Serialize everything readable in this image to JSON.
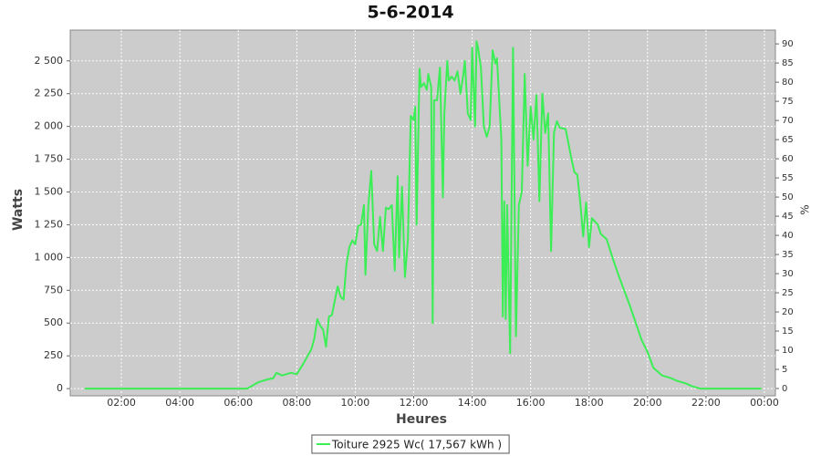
{
  "chart_data": {
    "type": "line",
    "title": "5-6-2014",
    "x_label": "Heures",
    "y_label": "Watts",
    "y2_label": "%",
    "x": [
      0.75,
      6.3,
      6.7,
      7.0,
      7.2,
      7.3,
      7.5,
      7.8,
      8.0,
      8.2,
      8.5,
      8.6,
      8.7,
      8.8,
      8.9,
      9.0,
      9.1,
      9.2,
      9.4,
      9.5,
      9.6,
      9.7,
      9.8,
      9.9,
      10.0,
      10.1,
      10.2,
      10.3,
      10.35,
      10.45,
      10.55,
      10.65,
      10.75,
      10.85,
      10.95,
      11.05,
      11.15,
      11.25,
      11.35,
      11.45,
      11.5,
      11.6,
      11.7,
      11.8,
      11.9,
      12.0,
      12.05,
      12.1,
      12.2,
      12.25,
      12.35,
      12.45,
      12.5,
      12.6,
      12.65,
      12.7,
      12.8,
      12.9,
      13.0,
      13.05,
      13.15,
      13.2,
      13.3,
      13.4,
      13.5,
      13.6,
      13.7,
      13.75,
      13.85,
      13.95,
      14.0,
      14.1,
      14.15,
      14.2,
      14.3,
      14.4,
      14.5,
      14.6,
      14.7,
      14.8,
      14.85,
      15.0,
      15.05,
      15.1,
      15.15,
      15.2,
      15.3,
      15.4,
      15.5,
      15.6,
      15.7,
      15.8,
      15.9,
      16.0,
      16.1,
      16.2,
      16.3,
      16.4,
      16.5,
      16.6,
      16.7,
      16.8,
      16.9,
      17.0,
      17.2,
      17.4,
      17.5,
      17.6,
      17.7,
      17.8,
      17.9,
      18.0,
      18.1,
      18.3,
      18.4,
      18.6,
      18.8,
      19.0,
      19.2,
      19.4,
      19.6,
      19.8,
      20.0,
      20.2,
      20.5,
      20.8,
      21.0,
      21.3,
      21.5,
      21.8,
      23.9
    ],
    "series": [
      {
        "name": "Toiture 2925 Wc( 17,567 kWh )",
        "color": "#3cee55",
        "values": [
          0,
          0,
          50,
          70,
          80,
          120,
          100,
          120,
          110,
          180,
          300,
          380,
          530,
          480,
          450,
          320,
          550,
          560,
          780,
          700,
          680,
          950,
          1080,
          1130,
          1100,
          1240,
          1250,
          1400,
          870,
          1400,
          1660,
          1100,
          1050,
          1310,
          1050,
          1380,
          1370,
          1400,
          900,
          1620,
          1000,
          1540,
          850,
          1130,
          2080,
          2050,
          2150,
          1250,
          2440,
          2300,
          2330,
          2280,
          2400,
          2300,
          500,
          2200,
          2200,
          2450,
          1460,
          2100,
          2500,
          2350,
          2380,
          2350,
          2420,
          2250,
          2400,
          2500,
          2100,
          2050,
          2600,
          2000,
          2650,
          2600,
          2450,
          2000,
          1920,
          2000,
          2580,
          2480,
          2520,
          1900,
          550,
          1430,
          530,
          1400,
          270,
          2600,
          400,
          1400,
          1500,
          2400,
          1700,
          2150,
          1900,
          2240,
          1430,
          2250,
          1950,
          2100,
          1050,
          1950,
          2040,
          1990,
          1980,
          1750,
          1650,
          1630,
          1420,
          1160,
          1420,
          1080,
          1300,
          1250,
          1180,
          1140,
          1000,
          870,
          750,
          630,
          500,
          370,
          280,
          160,
          100,
          80,
          60,
          40,
          20,
          0,
          0
        ]
      }
    ],
    "xlim": [
      0.25,
      24.375
    ],
    "xticks": [
      {
        "value": 2,
        "label": "02:00"
      },
      {
        "value": 4,
        "label": "04:00"
      },
      {
        "value": 6,
        "label": "06:00"
      },
      {
        "value": 8,
        "label": "08:00"
      },
      {
        "value": 10,
        "label": "10:00"
      },
      {
        "value": 12,
        "label": "12:00"
      },
      {
        "value": 14,
        "label": "14:00"
      },
      {
        "value": 16,
        "label": "16:00"
      },
      {
        "value": 18,
        "label": "18:00"
      },
      {
        "value": 20,
        "label": "20:00"
      },
      {
        "value": 22,
        "label": "22:00"
      },
      {
        "value": 24,
        "label": "00:00"
      }
    ],
    "ylim": [
      -55,
      2735
    ],
    "yticks": [
      0,
      250,
      500,
      750,
      {
        "value": 1000,
        "label": "1 000"
      },
      {
        "value": 1250,
        "label": "1 250"
      },
      {
        "value": 1500,
        "label": "1 500"
      },
      {
        "value": 1750,
        "label": "1 750"
      },
      {
        "value": 2000,
        "label": "2 000"
      },
      {
        "value": 2250,
        "label": "2 250"
      },
      {
        "value": 2500,
        "label": "2 500"
      }
    ],
    "y2lim": [
      -1.9,
      93.6
    ],
    "y2ticks": [
      0,
      5,
      10,
      15,
      20,
      25,
      30,
      35,
      40,
      45,
      50,
      55,
      60,
      65,
      70,
      75,
      80,
      85,
      90
    ],
    "grid": true,
    "background": "#cccccc",
    "legend": "bottom"
  }
}
